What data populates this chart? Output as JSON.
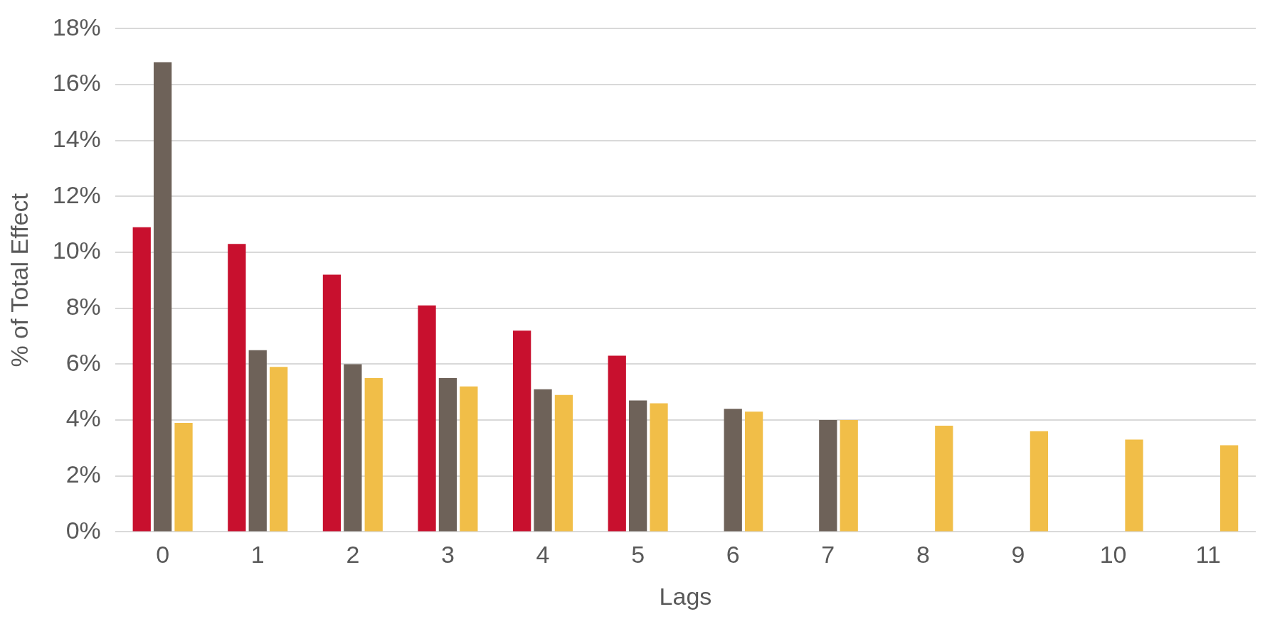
{
  "chart_data": {
    "type": "bar",
    "xlabel": "Lags",
    "ylabel": "% of Total Effect",
    "categories": [
      "0",
      "1",
      "2",
      "3",
      "4",
      "5",
      "6",
      "7",
      "8",
      "9",
      "10",
      "11"
    ],
    "series": [
      {
        "color": "#c8102e",
        "values": [
          10.9,
          10.3,
          9.2,
          8.1,
          7.2,
          6.3,
          null,
          null,
          null,
          null,
          null,
          null
        ]
      },
      {
        "color": "#6e6259",
        "values": [
          16.8,
          6.5,
          6.0,
          5.5,
          5.1,
          4.7,
          4.4,
          4.0,
          null,
          null,
          null,
          null
        ]
      },
      {
        "color": "#f1be48",
        "values": [
          3.9,
          5.9,
          5.5,
          5.2,
          4.9,
          4.6,
          4.3,
          4.0,
          3.8,
          3.6,
          3.3,
          3.1
        ]
      }
    ],
    "ylim": [
      0,
      18
    ],
    "yticks": [
      {
        "value": 0,
        "label": "0%"
      },
      {
        "value": 2,
        "label": "2%"
      },
      {
        "value": 4,
        "label": "4%"
      },
      {
        "value": 6,
        "label": "6%"
      },
      {
        "value": 8,
        "label": "8%"
      },
      {
        "value": 10,
        "label": "10%"
      },
      {
        "value": 12,
        "label": "12%"
      },
      {
        "value": 14,
        "label": "14%"
      },
      {
        "value": 16,
        "label": "16%"
      },
      {
        "value": 18,
        "label": "18%"
      }
    ],
    "grid": "y",
    "legend": false
  }
}
